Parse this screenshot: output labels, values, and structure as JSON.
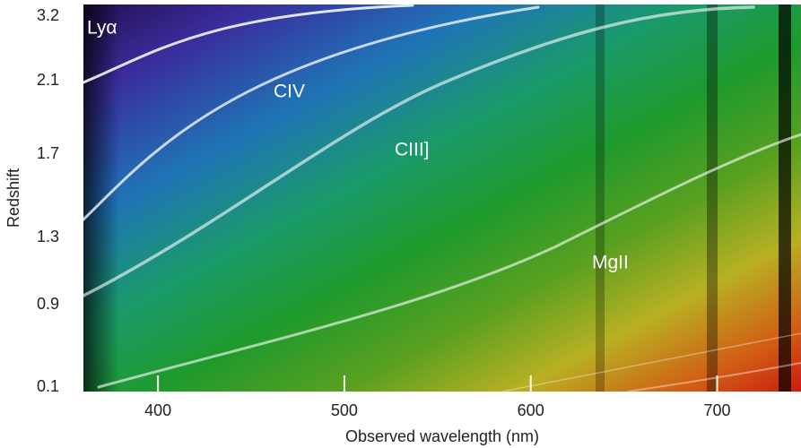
{
  "chart_data": {
    "type": "image",
    "xlabel": "Observed wavelength (nm)",
    "ylabel": "Redshift",
    "xlim": [
      360,
      745
    ],
    "xticks": [
      400,
      500,
      600,
      700
    ],
    "yticks": [
      0.1,
      0.9,
      1.3,
      1.7,
      2.1,
      3.2
    ],
    "annotations": [
      {
        "text": "Lyα"
      },
      {
        "text": "CIV"
      },
      {
        "text": "CIII]"
      },
      {
        "text": "MgII"
      }
    ]
  }
}
